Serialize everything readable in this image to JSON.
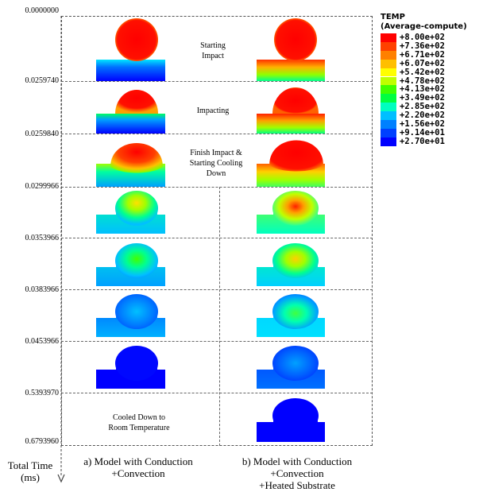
{
  "time_labels": [
    "0.0000000",
    "0.0259740",
    "0.0259840",
    "0.0299966",
    "0.0353966",
    "0.0383966",
    "0.0453966",
    "0.5393970",
    "0.6793960"
  ],
  "stage_captions": {
    "starting_impact": "Starting\nImpact",
    "impacting": "Impacting",
    "finish_impact": "Finish Impact &\nStarting Cooling\nDown",
    "cooled_down": "Cooled Down to\nRoom Temperature"
  },
  "axis_label": "Total Time\n(ms)",
  "model_a_label": "a) Model with Conduction\n+Convection",
  "model_b_label": "b) Model with Conduction\n+Convection\n+Heated Substrate",
  "legend": {
    "title_line1": "TEMP",
    "title_line2": "(Average-compute)",
    "values": [
      "+8.00e+02",
      "+7.36e+02",
      "+6.71e+02",
      "+6.07e+02",
      "+5.42e+02",
      "+4.78e+02",
      "+4.13e+02",
      "+3.49e+02",
      "+2.85e+02",
      "+2.20e+02",
      "+1.56e+02",
      "+9.14e+01",
      "+2.70e+01"
    ],
    "colors": [
      "#ff0000",
      "#ff4000",
      "#ff8000",
      "#ffbf00",
      "#ffff00",
      "#bfff00",
      "#40ff00",
      "#00ff40",
      "#00ffbf",
      "#00bfff",
      "#0080ff",
      "#0040ff",
      "#0000ff"
    ]
  }
}
